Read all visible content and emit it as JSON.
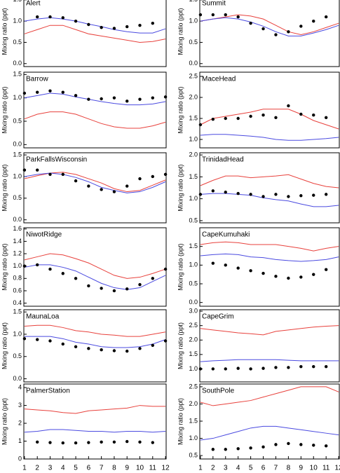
{
  "chart_data": [
    {
      "type": "line",
      "title": "Alert",
      "ylabel": "Mixing ratio (ppt)",
      "x": [
        1,
        2,
        3,
        4,
        5,
        6,
        7,
        8,
        9,
        10,
        11,
        12
      ],
      "xlim": [
        0.95,
        12.05
      ],
      "ylim": [
        -0.07,
        1.58
      ],
      "yticks": [
        {
          "value": 0,
          "label": "0.0"
        },
        0.5,
        {
          "value": 1,
          "label": "1.0"
        },
        1.5
      ],
      "series": [
        {
          "color": "#e8413c",
          "mode": "lines",
          "values": [
            0.7,
            0.8,
            0.9,
            0.9,
            0.8,
            0.7,
            0.65,
            0.6,
            0.55,
            0.5,
            0.52,
            0.58
          ]
        },
        {
          "color": "#4a4ae0",
          "mode": "lines",
          "values": [
            1.0,
            1.05,
            1.08,
            1.05,
            1.0,
            0.93,
            0.87,
            0.8,
            0.75,
            0.72,
            0.72,
            0.82
          ]
        },
        {
          "color": "#000000",
          "mode": "markers",
          "values": [
            null,
            1.1,
            1.1,
            1.08,
            1.0,
            0.92,
            0.85,
            0.83,
            0.87,
            0.9,
            0.95,
            null
          ]
        }
      ]
    },
    {
      "type": "line",
      "title": "Summit",
      "ylabel": "Mixing ratio (ppt)",
      "x": [
        1,
        2,
        3,
        4,
        5,
        6,
        7,
        8,
        9,
        10,
        11,
        12
      ],
      "xlim": [
        0.95,
        12.05
      ],
      "ylim": [
        -0.07,
        1.58
      ],
      "yticks": [
        {
          "value": 0,
          "label": "0.0"
        },
        0.5,
        {
          "value": 1,
          "label": "1.0"
        },
        1.5
      ],
      "series": [
        {
          "color": "#e8413c",
          "mode": "lines",
          "values": [
            1.0,
            1.05,
            1.1,
            1.15,
            1.12,
            1.05,
            0.9,
            0.75,
            0.68,
            0.75,
            0.85,
            0.95
          ]
        },
        {
          "color": "#4a4ae0",
          "mode": "lines",
          "values": [
            1.0,
            1.05,
            1.08,
            1.05,
            0.98,
            0.88,
            0.75,
            0.65,
            0.65,
            0.72,
            0.8,
            0.9
          ]
        },
        {
          "color": "#000000",
          "mode": "markers",
          "values": [
            1.15,
            1.15,
            1.15,
            1.1,
            0.95,
            0.82,
            0.68,
            0.75,
            0.88,
            1.0,
            1.1,
            null
          ]
        }
      ]
    },
    {
      "type": "line",
      "title": "Barrow",
      "ylabel": "Mixing ratio (ppt)",
      "x": [
        1,
        2,
        3,
        4,
        5,
        6,
        7,
        8,
        9,
        10,
        11,
        12
      ],
      "xlim": [
        0.95,
        12.05
      ],
      "ylim": [
        -0.07,
        1.55
      ],
      "yticks": [
        {
          "value": 0,
          "label": "0.0"
        },
        0.5,
        {
          "value": 1,
          "label": "1.0"
        },
        1.5
      ],
      "series": [
        {
          "color": "#e8413c",
          "mode": "lines",
          "values": [
            0.55,
            0.65,
            0.7,
            0.7,
            0.65,
            0.55,
            0.45,
            0.38,
            0.35,
            0.35,
            0.4,
            0.48
          ]
        },
        {
          "color": "#4a4ae0",
          "mode": "lines",
          "values": [
            1.0,
            1.05,
            1.1,
            1.08,
            1.02,
            0.97,
            0.92,
            0.88,
            0.85,
            0.85,
            0.87,
            0.92
          ]
        },
        {
          "color": "#000000",
          "mode": "markers",
          "values": [
            1.1,
            1.12,
            1.15,
            1.12,
            1.05,
            0.97,
            0.98,
            1.0,
            0.93,
            0.97,
            1.0,
            1.02
          ]
        }
      ]
    },
    {
      "type": "line",
      "title": "MaceHead",
      "ylabel": "Mixing ratio (ppt)",
      "x": [
        1,
        2,
        3,
        4,
        5,
        6,
        7,
        8,
        9,
        10,
        11,
        12
      ],
      "xlim": [
        0.95,
        12.05
      ],
      "ylim": [
        0.8,
        2.6
      ],
      "yticks": [
        {
          "value": 1,
          "label": "1.0"
        },
        1.5,
        {
          "value": 2,
          "label": "2.0"
        },
        2.5
      ],
      "series": [
        {
          "color": "#e8413c",
          "mode": "lines",
          "values": [
            1.35,
            1.5,
            1.55,
            1.6,
            1.65,
            1.72,
            1.72,
            1.72,
            1.6,
            1.45,
            1.35,
            1.25
          ]
        },
        {
          "color": "#4a4ae0",
          "mode": "lines",
          "values": [
            1.1,
            1.12,
            1.12,
            1.1,
            1.08,
            1.05,
            1.0,
            0.98,
            0.98,
            1.0,
            1.02,
            1.05
          ]
        },
        {
          "color": "#000000",
          "mode": "markers",
          "values": [
            1.35,
            1.48,
            1.5,
            1.5,
            1.55,
            1.58,
            1.52,
            1.8,
            1.6,
            1.58,
            1.52,
            null
          ]
        }
      ]
    },
    {
      "type": "line",
      "title": "ParkFallsWisconsin",
      "ylabel": "Mixing ratio (ppt)",
      "x": [
        1,
        2,
        3,
        4,
        5,
        6,
        7,
        8,
        9,
        10,
        11,
        12
      ],
      "xlim": [
        0.95,
        12.05
      ],
      "ylim": [
        -0.07,
        1.55
      ],
      "yticks": [
        {
          "value": 0,
          "label": "0.0"
        },
        0.5,
        {
          "value": 1,
          "label": "1.0"
        },
        1.5
      ],
      "series": [
        {
          "color": "#e8413c",
          "mode": "lines",
          "values": [
            0.95,
            1.02,
            1.08,
            1.1,
            1.05,
            0.95,
            0.85,
            0.72,
            0.65,
            0.68,
            0.8,
            0.92
          ]
        },
        {
          "color": "#4a4ae0",
          "mode": "lines",
          "values": [
            1.0,
            1.05,
            1.08,
            1.05,
            0.98,
            0.88,
            0.75,
            0.68,
            0.62,
            0.65,
            0.75,
            0.88
          ]
        },
        {
          "color": "#000000",
          "mode": "markers",
          "values": [
            1.15,
            1.15,
            1.05,
            1.05,
            0.9,
            0.78,
            0.7,
            0.65,
            0.78,
            0.95,
            1.0,
            1.05
          ]
        }
      ]
    },
    {
      "type": "line",
      "title": "TrinidadHead",
      "ylabel": "Mixing ratio (ppt)",
      "x": [
        1,
        2,
        3,
        4,
        5,
        6,
        7,
        8,
        9,
        10,
        11,
        12
      ],
      "xlim": [
        0.95,
        12.05
      ],
      "ylim": [
        0.45,
        2.05
      ],
      "yticks": [
        0.5,
        {
          "value": 1,
          "label": "1.0"
        },
        1.5,
        {
          "value": 2,
          "label": "2.0"
        }
      ],
      "series": [
        {
          "color": "#e8413c",
          "mode": "lines",
          "values": [
            1.3,
            1.42,
            1.52,
            1.52,
            1.48,
            1.5,
            1.52,
            1.55,
            1.45,
            1.35,
            1.28,
            1.25
          ]
        },
        {
          "color": "#4a4ae0",
          "mode": "lines",
          "values": [
            1.1,
            1.12,
            1.12,
            1.1,
            1.08,
            1.02,
            0.98,
            0.95,
            0.88,
            0.82,
            0.82,
            0.85
          ]
        },
        {
          "color": "#000000",
          "mode": "markers",
          "values": [
            1.1,
            1.18,
            1.15,
            1.12,
            1.1,
            1.05,
            1.1,
            1.05,
            1.07,
            1.08,
            1.1,
            null
          ]
        }
      ]
    },
    {
      "type": "line",
      "title": "NiwotRidge",
      "ylabel": "Mixing ratio (ppt)",
      "x": [
        1,
        2,
        3,
        4,
        5,
        6,
        7,
        8,
        9,
        10,
        11,
        12
      ],
      "xlim": [
        0.95,
        12.05
      ],
      "ylim": [
        0.35,
        1.62
      ],
      "yticks": [
        0.4,
        0.6,
        0.8,
        {
          "value": 1,
          "label": "1.0"
        },
        1.2,
        1.4,
        1.6
      ],
      "series": [
        {
          "color": "#e8413c",
          "mode": "lines",
          "values": [
            1.1,
            1.15,
            1.2,
            1.18,
            1.12,
            1.05,
            0.95,
            0.85,
            0.8,
            0.82,
            0.88,
            0.95
          ]
        },
        {
          "color": "#4a4ae0",
          "mode": "lines",
          "values": [
            0.98,
            1.02,
            1.02,
            0.98,
            0.92,
            0.82,
            0.72,
            0.65,
            0.62,
            0.65,
            0.75,
            0.85
          ]
        },
        {
          "color": "#000000",
          "mode": "markers",
          "values": [
            1.0,
            1.02,
            0.95,
            0.88,
            0.8,
            0.68,
            0.64,
            0.6,
            0.63,
            0.7,
            0.8,
            0.95
          ]
        }
      ]
    },
    {
      "type": "line",
      "title": "CapeKumuhaki",
      "ylabel": "Mixing ratio (ppt)",
      "x": [
        1,
        2,
        3,
        4,
        5,
        6,
        7,
        8,
        9,
        10,
        11,
        12
      ],
      "xlim": [
        0.95,
        12.05
      ],
      "ylim": [
        -0.1,
        2.0
      ],
      "yticks": [
        {
          "value": 0,
          "label": "0.0"
        },
        0.5,
        {
          "value": 1,
          "label": "1.0"
        },
        1.5
      ],
      "series": [
        {
          "color": "#e8413c",
          "mode": "lines",
          "values": [
            1.55,
            1.6,
            1.62,
            1.6,
            1.55,
            1.55,
            1.55,
            1.5,
            1.45,
            1.38,
            1.45,
            1.5
          ]
        },
        {
          "color": "#4a4ae0",
          "mode": "lines",
          "values": [
            1.25,
            1.28,
            1.3,
            1.28,
            1.22,
            1.2,
            1.15,
            1.12,
            1.1,
            1.12,
            1.15,
            1.22
          ]
        },
        {
          "color": "#000000",
          "mode": "markers",
          "values": [
            null,
            1.05,
            1.0,
            0.92,
            0.85,
            0.78,
            0.7,
            0.65,
            0.68,
            0.75,
            0.88,
            null
          ]
        }
      ]
    },
    {
      "type": "line",
      "title": "MaunaLoa",
      "ylabel": "Mixing ratio (ppt)",
      "x": [
        1,
        2,
        3,
        4,
        5,
        6,
        7,
        8,
        9,
        10,
        11,
        12
      ],
      "xlim": [
        0.95,
        12.05
      ],
      "ylim": [
        -0.07,
        1.55
      ],
      "yticks": [
        {
          "value": 0,
          "label": "0.0"
        },
        0.5,
        {
          "value": 1,
          "label": "1.0"
        },
        1.5
      ],
      "series": [
        {
          "color": "#e8413c",
          "mode": "lines",
          "values": [
            1.18,
            1.2,
            1.2,
            1.15,
            1.08,
            1.05,
            1.0,
            0.98,
            0.95,
            0.95,
            1.0,
            1.05
          ]
        },
        {
          "color": "#4a4ae0",
          "mode": "lines",
          "values": [
            0.95,
            0.95,
            0.95,
            0.9,
            0.82,
            0.78,
            0.72,
            0.7,
            0.7,
            0.72,
            0.78,
            0.88
          ]
        },
        {
          "color": "#000000",
          "mode": "markers",
          "values": [
            0.9,
            0.88,
            0.85,
            0.78,
            0.72,
            0.68,
            0.65,
            0.63,
            0.62,
            0.68,
            0.75,
            0.85
          ]
        }
      ]
    },
    {
      "type": "line",
      "title": "CapeGrim",
      "ylabel": "Mixing ratio (ppt)",
      "x": [
        1,
        2,
        3,
        4,
        5,
        6,
        7,
        8,
        9,
        10,
        11,
        12
      ],
      "xlim": [
        0.95,
        12.05
      ],
      "ylim": [
        0.55,
        3.05
      ],
      "yticks": [
        {
          "value": 1,
          "label": "1.0"
        },
        1.5,
        {
          "value": 2,
          "label": "2.0"
        },
        2.5,
        {
          "value": 3,
          "label": "3.0"
        }
      ],
      "series": [
        {
          "color": "#e8413c",
          "mode": "lines",
          "values": [
            2.4,
            2.35,
            2.3,
            2.25,
            2.22,
            2.18,
            2.3,
            2.35,
            2.4,
            2.45,
            2.48,
            2.5
          ]
        },
        {
          "color": "#4a4ae0",
          "mode": "lines",
          "values": [
            1.25,
            1.28,
            1.3,
            1.32,
            1.32,
            1.32,
            1.32,
            1.3,
            1.28,
            1.28,
            1.28,
            1.28
          ]
        },
        {
          "color": "#000000",
          "mode": "markers",
          "values": [
            1.0,
            1.0,
            1.0,
            1.02,
            1.0,
            1.02,
            1.05,
            1.05,
            1.08,
            1.08,
            1.08,
            null
          ]
        }
      ]
    },
    {
      "type": "line",
      "title": "PalmerStation",
      "ylabel": "Mixing ratio (ppt)",
      "x": [
        1,
        2,
        3,
        4,
        5,
        6,
        7,
        8,
        9,
        10,
        11,
        12
      ],
      "xlim": [
        0.95,
        12.05
      ],
      "ylim": [
        0,
        4.2
      ],
      "yticks": [
        0,
        1,
        2,
        3,
        4
      ],
      "xticks": [
        1,
        2,
        3,
        4,
        5,
        6,
        7,
        8,
        9,
        10,
        11,
        12
      ],
      "series": [
        {
          "color": "#e8413c",
          "mode": "lines",
          "values": [
            2.8,
            2.75,
            2.7,
            2.6,
            2.55,
            2.7,
            2.75,
            2.8,
            2.85,
            3.0,
            2.95,
            2.95
          ]
        },
        {
          "color": "#4a4ae0",
          "mode": "lines",
          "values": [
            1.5,
            1.55,
            1.65,
            1.65,
            1.6,
            1.55,
            1.55,
            1.5,
            1.55,
            1.55,
            1.5,
            1.55
          ]
        },
        {
          "color": "#000000",
          "mode": "markers",
          "values": [
            null,
            0.95,
            0.92,
            0.9,
            0.9,
            0.92,
            0.95,
            0.95,
            0.98,
            0.95,
            0.92,
            null
          ]
        }
      ]
    },
    {
      "type": "line",
      "title": "SouthPole",
      "ylabel": "Mixing ratio (ppt)",
      "x": [
        1,
        2,
        3,
        4,
        5,
        6,
        7,
        8,
        9,
        10,
        11,
        12
      ],
      "xlim": [
        0.95,
        12.05
      ],
      "ylim": [
        0.4,
        2.58
      ],
      "yticks": [
        0.5,
        {
          "value": 1,
          "label": "1.0"
        },
        1.5,
        {
          "value": 2,
          "label": "2.0"
        },
        2.5
      ],
      "xticks": [
        1,
        2,
        3,
        4,
        5,
        6,
        7,
        8,
        9,
        10,
        11,
        12
      ],
      "series": [
        {
          "color": "#e8413c",
          "mode": "lines",
          "values": [
            2.05,
            1.95,
            2.0,
            2.05,
            2.1,
            2.2,
            2.3,
            2.4,
            2.5,
            2.5,
            2.5,
            2.35
          ]
        },
        {
          "color": "#4a4ae0",
          "mode": "lines",
          "values": [
            0.95,
            1.0,
            1.1,
            1.2,
            1.3,
            1.35,
            1.35,
            1.3,
            1.25,
            1.2,
            1.15,
            1.1
          ]
        },
        {
          "color": "#000000",
          "mode": "markers",
          "values": [
            null,
            0.68,
            0.68,
            0.7,
            0.72,
            0.75,
            0.82,
            0.85,
            0.82,
            0.8,
            0.78,
            null
          ]
        }
      ]
    }
  ]
}
